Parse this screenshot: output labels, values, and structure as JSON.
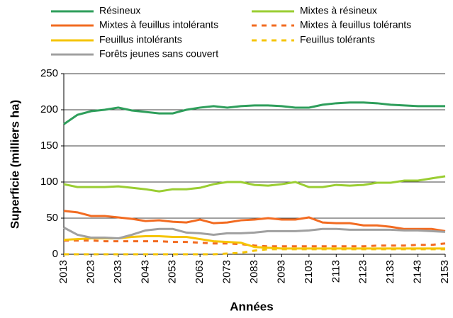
{
  "chart_data": {
    "type": "line",
    "x_label": "Années",
    "y_label": "Superficie (milliers ha)",
    "x": [
      2013,
      2018,
      2023,
      2028,
      2033,
      2038,
      2043,
      2048,
      2053,
      2058,
      2063,
      2068,
      2073,
      2078,
      2083,
      2088,
      2093,
      2098,
      2103,
      2108,
      2113,
      2118,
      2123,
      2128,
      2133,
      2138,
      2143,
      2148,
      2153
    ],
    "xlim": [
      2013,
      2153
    ],
    "xticks": [
      2013,
      2023,
      2033,
      2043,
      2053,
      2063,
      2073,
      2083,
      2093,
      2103,
      2113,
      2123,
      2133,
      2143,
      2153
    ],
    "ylim": [
      0,
      250
    ],
    "yticks": [
      0,
      50,
      100,
      150,
      200,
      250
    ],
    "grid": true,
    "series": [
      {
        "name": "Résineux",
        "color": "#2e9e5b",
        "dashed": false,
        "values": [
          180,
          193,
          198,
          200,
          203,
          199,
          197,
          195,
          195,
          200,
          203,
          205,
          203,
          205,
          206,
          206,
          205,
          203,
          203,
          207,
          209,
          210,
          210,
          209,
          207,
          206,
          205,
          205,
          205
        ]
      },
      {
        "name": "Mixtes à résineux",
        "color": "#9acd32",
        "dashed": false,
        "values": [
          97,
          93,
          93,
          93,
          94,
          92,
          90,
          87,
          90,
          90,
          92,
          97,
          100,
          100,
          96,
          95,
          97,
          100,
          93,
          93,
          96,
          95,
          96,
          99,
          99,
          102,
          102,
          105,
          108
        ]
      },
      {
        "name": "Mixtes à feuillus intolérants",
        "color": "#f26b21",
        "dashed": false,
        "values": [
          60,
          58,
          53,
          53,
          51,
          49,
          46,
          47,
          45,
          44,
          48,
          43,
          44,
          47,
          48,
          50,
          48,
          48,
          51,
          44,
          43,
          43,
          40,
          40,
          38,
          35,
          35,
          35,
          32
        ]
      },
      {
        "name": "Mixtes à feuillus tolérants",
        "color": "#f26b21",
        "dashed": true,
        "values": [
          19,
          19,
          19,
          18,
          18,
          18,
          18,
          18,
          17,
          17,
          16,
          15,
          15,
          14,
          12,
          11,
          11,
          11,
          11,
          11,
          11,
          11,
          11,
          12,
          12,
          12,
          13,
          13,
          15
        ]
      },
      {
        "name": "Feuillus intolérants",
        "color": "#f5c400",
        "dashed": false,
        "values": [
          20,
          21,
          22,
          22,
          22,
          24,
          25,
          25,
          24,
          24,
          21,
          18,
          17,
          16,
          10,
          9,
          8,
          8,
          8,
          8,
          8,
          8,
          8,
          8,
          8,
          8,
          8,
          8,
          8
        ]
      },
      {
        "name": "Feuillus tolérants",
        "color": "#f5c400",
        "dashed": true,
        "values": [
          0,
          0,
          0,
          0,
          0,
          0,
          0,
          0,
          0,
          0,
          0,
          0,
          1,
          2,
          5,
          7,
          7,
          7,
          7,
          7,
          7,
          7,
          7,
          7,
          7,
          7,
          7,
          7,
          7
        ]
      },
      {
        "name": "Forêts jeunes sans couvert",
        "color": "#a0a0a0",
        "dashed": false,
        "values": [
          37,
          27,
          23,
          23,
          22,
          27,
          33,
          35,
          35,
          30,
          29,
          27,
          29,
          29,
          30,
          32,
          32,
          32,
          33,
          35,
          35,
          34,
          34,
          34,
          34,
          33,
          33,
          32,
          31
        ]
      }
    ]
  }
}
